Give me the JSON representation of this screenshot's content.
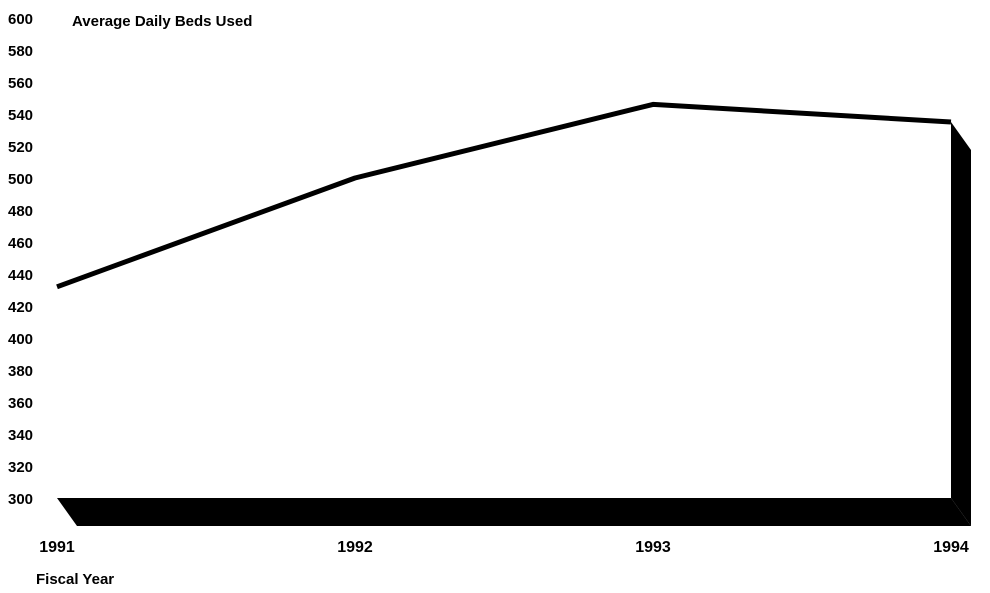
{
  "chart_data": {
    "type": "area",
    "title": "Average Daily Beds Used",
    "xlabel": "Fiscal Year",
    "ylabel": "",
    "categories": [
      "1991",
      "1992",
      "1993",
      "1994"
    ],
    "values": [
      432,
      500,
      546,
      535
    ],
    "ylim": [
      300,
      600
    ],
    "yticks": [
      600,
      580,
      560,
      540,
      520,
      500,
      480,
      460,
      440,
      420,
      400,
      380,
      360,
      340,
      320,
      300
    ],
    "grid": false,
    "colors": {
      "line": "#000000",
      "shadow": "#000000",
      "fill": "#ffffff"
    }
  }
}
